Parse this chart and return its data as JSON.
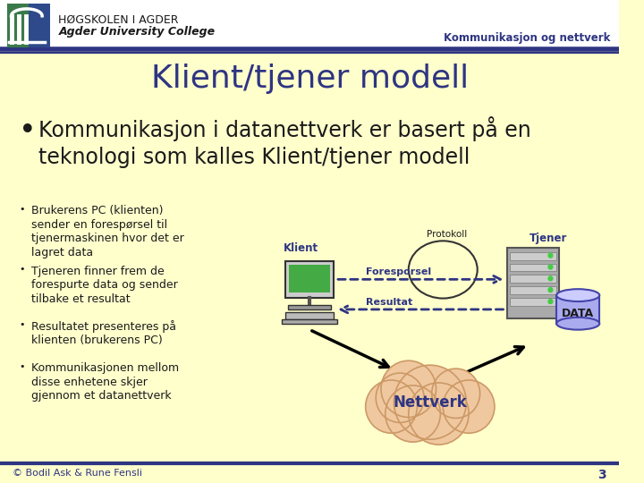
{
  "bg_color": "#ffffcc",
  "header_bg": "#ffffff",
  "header_line_color": "#2e3582",
  "header_logo_green": "#3a7a4a",
  "header_logo_blue": "#2e4a8a",
  "school_name": "HØGSKOLEN I AGDER",
  "school_subtitle": "Agder University College",
  "course_name": "Kommunikasjon og nettverk",
  "title": "Klient/tjener modell",
  "title_color": "#2e3582",
  "main_bullet": "Kommunikasjon i datanettverk er basert på en\nteknologi som kalles Klient/tjener modell",
  "main_bullet_color": "#1a1a1a",
  "sub_bullets": [
    "Brukerens PC (klienten)\nsender en forespørsel til\ntjenermaskinen hvor det er\nlagret data",
    "Tjeneren finner frem de\nforespurte data og sender\ntilbake et resultat",
    "Resultatet presenteres på\nklienten (brukerens PC)",
    "Kommunikasjonen mellom\ndisse enhetene skjer\ngjennom et datanettverk"
  ],
  "sub_bullet_color": "#1a1a1a",
  "footer_text": "© Bodil Ask & Rune Fensli",
  "footer_number": "3",
  "footer_color": "#2e3582",
  "diagram_klient_label": "Klient",
  "diagram_forespørsel_label": "Foresporsel",
  "diagram_protokoll_label": "Protokoll",
  "diagram_resultat_label": "Resultat",
  "diagram_tjener_label": "Tjener",
  "diagram_nettverk_label": "Nettverk",
  "diagram_data_label": "DATA",
  "arrow_color": "#000000",
  "dot_arrow_color": "#2e3582",
  "cloud_fill": "#f0c8a0",
  "cloud_edge": "#cc9966",
  "data_fill": "#aaaaee",
  "data_edge": "#4444aa"
}
